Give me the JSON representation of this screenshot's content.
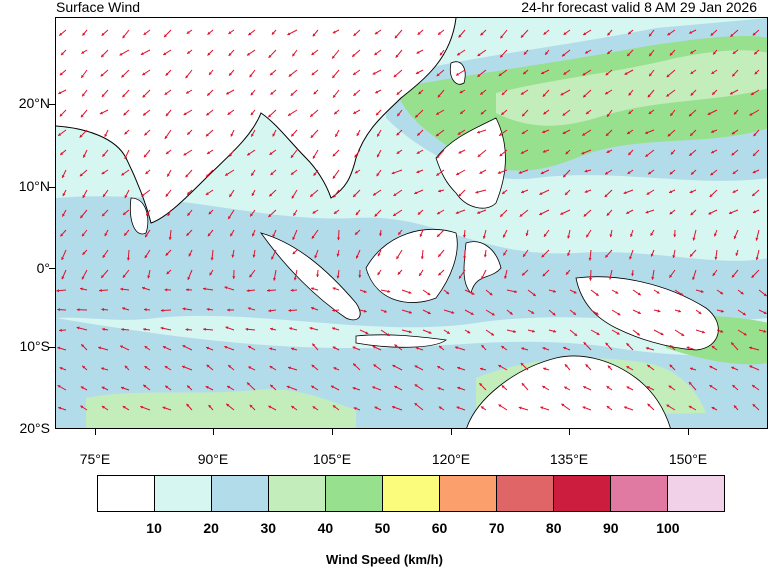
{
  "header": {
    "title": "Surface Wind",
    "valid_time": "24-hr forecast valid 8 AM 29 Jan 2026"
  },
  "map": {
    "lon_range": [
      67.7,
      167.5
    ],
    "lat_range": [
      -20,
      29.5
    ],
    "lat_labels": [
      "20°N",
      "10°N",
      "0°",
      "10°S",
      "20°S"
    ],
    "lon_labels": [
      "75°E",
      "90°E",
      "105°E",
      "120°E",
      "135°E",
      "150°E"
    ],
    "arrow_color": "#e0102a",
    "land_color": "#ffffff"
  },
  "legend": {
    "title": "Wind Speed (km/h)",
    "tick_labels": [
      "10",
      "20",
      "30",
      "40",
      "50",
      "60",
      "70",
      "80",
      "90",
      "100"
    ],
    "colors": [
      "#ffffff",
      "#d6f6f2",
      "#b3dcea",
      "#c3eebb",
      "#97e08e",
      "#fbfb7c",
      "#fb9f6c",
      "#e06567",
      "#cc1d3f",
      "#e07aa2",
      "#f1d1e8"
    ]
  }
}
